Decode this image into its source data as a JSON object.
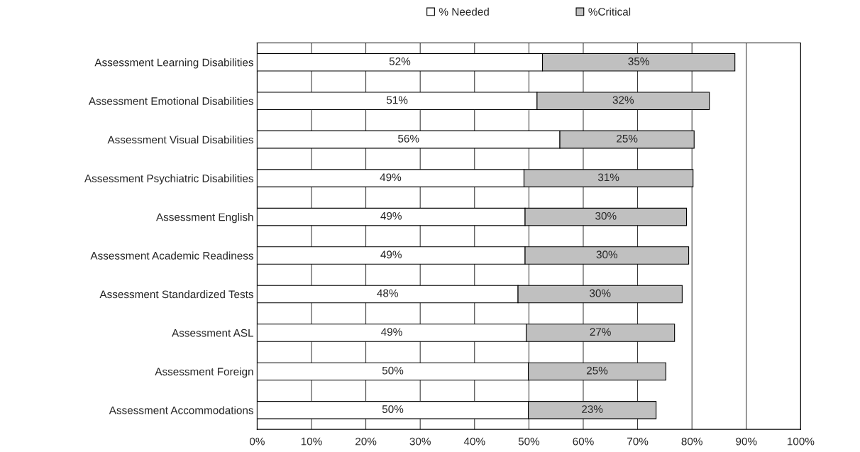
{
  "chart_data": {
    "type": "bar",
    "orientation": "horizontal",
    "stacked": true,
    "categories": [
      "Assessment Learning Disabilities",
      "Assessment Emotional Disabilities",
      "Assessment Visual Disabilities",
      "Assessment Psychiatric Disabilities",
      "Assessment English",
      "Assessment Academic Readiness",
      "Assessment Standardized Tests",
      "Assessment ASL",
      "Assessment Foreign",
      "Assessment Accommodations"
    ],
    "series": [
      {
        "name": "% Needed",
        "color": "#ffffff",
        "values": [
          52.5,
          51.5,
          55.7,
          49.1,
          49.3,
          49.3,
          48.0,
          49.5,
          49.9,
          49.9
        ],
        "value_labels": [
          "52%",
          "51%",
          "56%",
          "49%",
          "49%",
          "49%",
          "48%",
          "49%",
          "50%",
          "50%"
        ]
      },
      {
        "name": "%Critical",
        "color": "#c0c0c0",
        "values": [
          35.4,
          31.7,
          24.7,
          31.1,
          29.7,
          30.1,
          30.2,
          27.3,
          25.3,
          23.5
        ],
        "value_labels": [
          "35%",
          "32%",
          "25%",
          "31%",
          "30%",
          "30%",
          "30%",
          "27%",
          "25%",
          "23%"
        ]
      }
    ],
    "xlim": [
      0,
      100
    ],
    "xticks": [
      {
        "value": 0,
        "label": "0%"
      },
      {
        "value": 10,
        "label": "10%"
      },
      {
        "value": 20,
        "label": "20%"
      },
      {
        "value": 30,
        "label": "30%"
      },
      {
        "value": 40,
        "label": "40%"
      },
      {
        "value": 50,
        "label": "50%"
      },
      {
        "value": 60,
        "label": "60%"
      },
      {
        "value": 70,
        "label": "70%"
      },
      {
        "value": 80,
        "label": "80%"
      },
      {
        "value": 90,
        "label": "90%"
      },
      {
        "value": 100,
        "label": "100%"
      }
    ],
    "grid": "x",
    "legend": "top"
  }
}
